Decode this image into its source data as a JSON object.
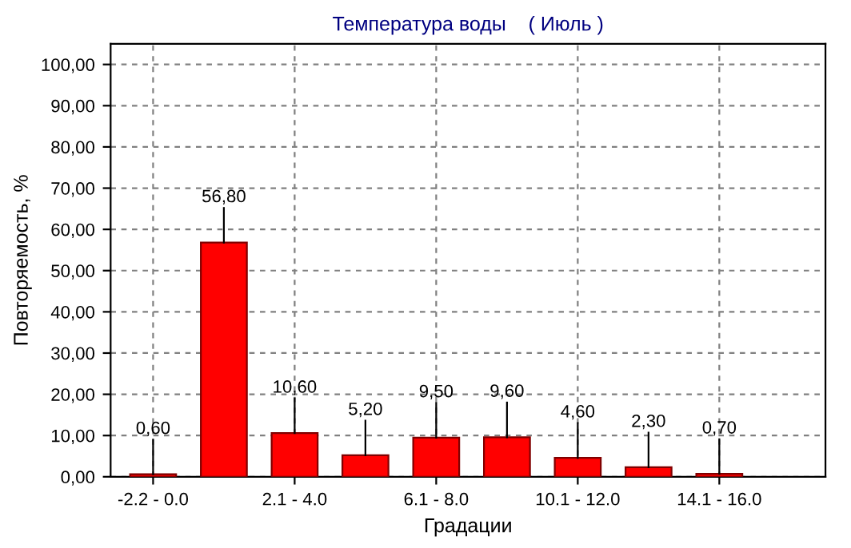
{
  "chart_data": {
    "type": "bar",
    "title": "Температура воды    ( Июль )",
    "xlabel": "Градации",
    "ylabel": "Повторяемость, %",
    "categories": [
      "-2.2 - 0.0",
      null,
      "2.1 - 4.0",
      null,
      "6.1 - 8.0",
      null,
      "10.1 - 12.0",
      null,
      "14.1 - 16.0"
    ],
    "values": [
      0.6,
      56.8,
      10.6,
      5.2,
      9.5,
      9.6,
      4.6,
      2.3,
      0.7
    ],
    "value_labels": [
      "0,60",
      "56,80",
      "10,60",
      "5,20",
      "9,50",
      "9,60",
      "4,60",
      "2,30",
      "0,70"
    ],
    "color": "#ff0000",
    "ylim": [
      0,
      105
    ],
    "yticks": [
      {
        "value": 0,
        "label": "0,00"
      },
      {
        "value": 10,
        "label": "10,00"
      },
      {
        "value": 20,
        "label": "20,00"
      },
      {
        "value": 30,
        "label": "30,00"
      },
      {
        "value": 40,
        "label": "40,00"
      },
      {
        "value": 50,
        "label": "50,00"
      },
      {
        "value": 60,
        "label": "60,00"
      },
      {
        "value": 70,
        "label": "70,00"
      },
      {
        "value": 80,
        "label": "80,00"
      },
      {
        "value": 90,
        "label": "90,00"
      },
      {
        "value": 100,
        "label": "100,00"
      }
    ],
    "grid": true
  }
}
